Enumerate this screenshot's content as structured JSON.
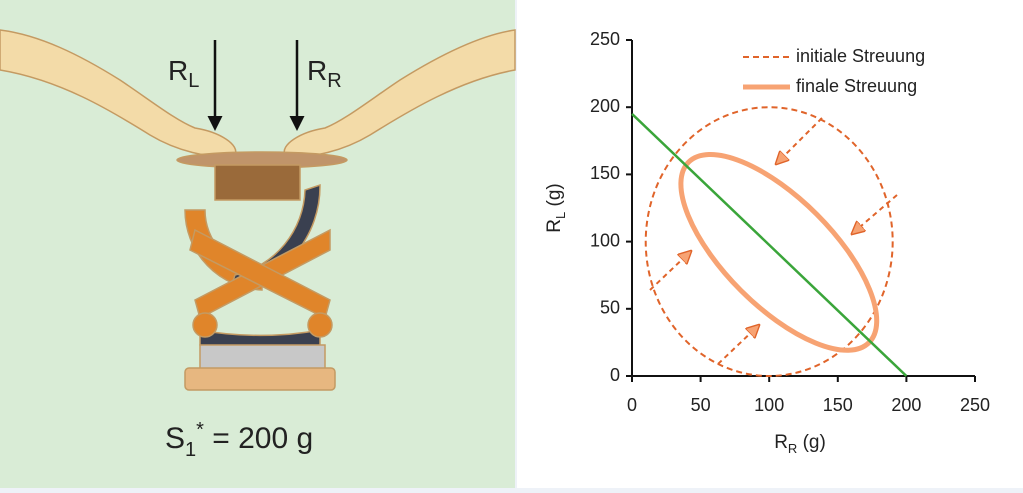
{
  "figure": {
    "left_force": {
      "main": "R",
      "sub": "L"
    },
    "right_force": {
      "main": "R",
      "sub": "R"
    },
    "caption": {
      "main": "S",
      "sub": "1",
      "sup": "*",
      "rest": " = 200 g"
    }
  },
  "chart_data": {
    "type": "ellipse-plot",
    "xlabel": {
      "main": "R",
      "sub": "R",
      "rest": " (g)"
    },
    "ylabel": {
      "main": "R",
      "sub": "L",
      "rest": " (g)"
    },
    "xlim": [
      0,
      250
    ],
    "ylim": [
      0,
      250
    ],
    "xticks": [
      0,
      50,
      100,
      150,
      200,
      250
    ],
    "yticks": [
      0,
      50,
      100,
      150,
      200,
      250
    ],
    "series": [
      {
        "name": "initiale Streuung",
        "color": "#e0642a",
        "style": "dashed",
        "center": [
          100,
          100
        ],
        "rx": 90,
        "ry": 100,
        "angle": 0
      },
      {
        "name": "finale Streuung",
        "color": "#f7a373",
        "style": "solid",
        "center": [
          107,
          92
        ],
        "rx": 93,
        "ry": 40,
        "angle": -45
      }
    ],
    "line": {
      "color": "#3aa53a",
      "x": [
        0,
        200
      ],
      "values": [
        195,
        0
      ]
    }
  }
}
